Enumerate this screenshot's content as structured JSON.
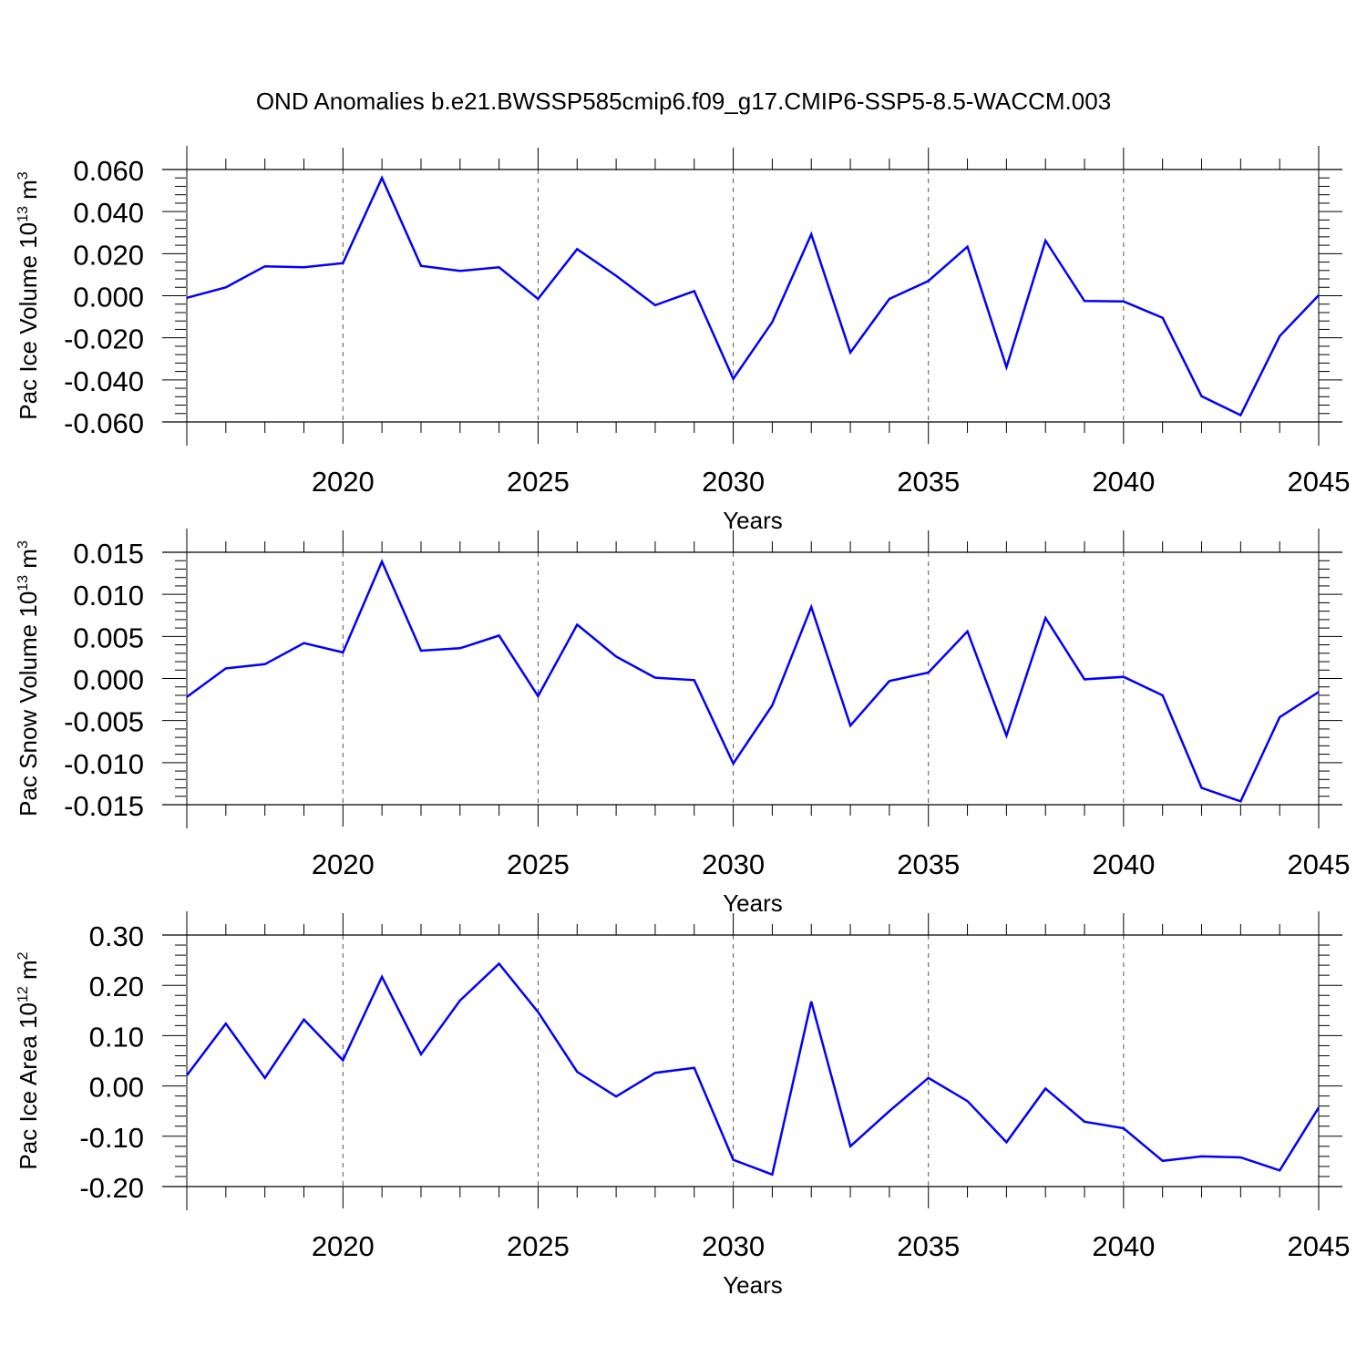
{
  "figure": {
    "title": "OND Anomalies b.e21.BWSSP585cmip6.f09_g17.CMIP6-SSP5-8.5-WACCM.003",
    "line_color": "#0000ff"
  },
  "chart_data": [
    {
      "type": "line",
      "xlabel": "Years",
      "ylabel_main": "Pac Ice Volume 10",
      "ylabel_sup1": "13",
      "ylabel_unit": " m",
      "ylabel_sup2": "3",
      "xlim": [
        2016,
        2045
      ],
      "ylim": [
        -0.06,
        0.06
      ],
      "x_ticks": [
        2020,
        2025,
        2030,
        2035,
        2040,
        2045
      ],
      "x_tick_labels": [
        "2020",
        "2025",
        "2030",
        "2035",
        "2040",
        "2045"
      ],
      "y_ticks": [
        -0.06,
        -0.04,
        -0.02,
        0.0,
        0.02,
        0.04,
        0.06
      ],
      "y_tick_labels": [
        "-0.060",
        "-0.040",
        "-0.020",
        "0.000",
        "0.020",
        "0.040",
        "0.060"
      ],
      "grid": "dashed vertical at major x ticks",
      "x": [
        2016,
        2017,
        2018,
        2019,
        2020,
        2021,
        2022,
        2023,
        2024,
        2025,
        2026,
        2027,
        2028,
        2029,
        2030,
        2031,
        2032,
        2033,
        2034,
        2035,
        2036,
        2037,
        2038,
        2039,
        2040,
        2041,
        2042,
        2043,
        2044,
        2045
      ],
      "series": [
        {
          "values": [
            -0.001,
            0.004,
            0.014,
            0.0135,
            0.0155,
            0.056,
            0.0142,
            0.0118,
            0.0135,
            -0.0015,
            0.0222,
            0.0095,
            -0.0045,
            0.0022,
            -0.0395,
            -0.0125,
            0.0292,
            -0.027,
            -0.0015,
            0.007,
            0.0233,
            -0.034,
            0.0262,
            -0.0025,
            -0.0027,
            -0.0105,
            -0.0478,
            -0.0568,
            -0.0192,
            0.0002
          ]
        }
      ]
    },
    {
      "type": "line",
      "xlabel": "Years",
      "ylabel_main": "Pac Snow Volume 10",
      "ylabel_sup1": "13",
      "ylabel_unit": " m",
      "ylabel_sup2": "3",
      "xlim": [
        2016,
        2045
      ],
      "ylim": [
        -0.015,
        0.015
      ],
      "x_ticks": [
        2020,
        2025,
        2030,
        2035,
        2040,
        2045
      ],
      "x_tick_labels": [
        "2020",
        "2025",
        "2030",
        "2035",
        "2040",
        "2045"
      ],
      "y_ticks": [
        -0.015,
        -0.01,
        -0.005,
        0.0,
        0.005,
        0.01,
        0.015
      ],
      "y_tick_labels": [
        "-0.015",
        "-0.010",
        "-0.005",
        "0.000",
        "0.005",
        "0.010",
        "0.015"
      ],
      "grid": "dashed vertical at major x ticks",
      "x": [
        2016,
        2017,
        2018,
        2019,
        2020,
        2021,
        2022,
        2023,
        2024,
        2025,
        2026,
        2027,
        2028,
        2029,
        2030,
        2031,
        2032,
        2033,
        2034,
        2035,
        2036,
        2037,
        2038,
        2039,
        2040,
        2041,
        2042,
        2043,
        2044,
        2045
      ],
      "series": [
        {
          "values": [
            -0.0022,
            0.0012,
            0.0017,
            0.0042,
            0.0031,
            0.0139,
            0.0033,
            0.0036,
            0.0051,
            -0.0021,
            0.0064,
            0.0026,
            0.0001,
            -0.0002,
            -0.0101,
            -0.0032,
            0.0085,
            -0.0056,
            -0.0003,
            0.0007,
            0.0056,
            -0.0068,
            0.0072,
            -0.0001,
            0.0002,
            -0.002,
            -0.013,
            -0.0146,
            -0.0046,
            -0.0016
          ]
        }
      ]
    },
    {
      "type": "line",
      "xlabel": "Years",
      "ylabel_main": "Pac Ice Area 10",
      "ylabel_sup1": "12",
      "ylabel_unit": " m",
      "ylabel_sup2": "2",
      "xlim": [
        2016,
        2045
      ],
      "ylim": [
        -0.2,
        0.3
      ],
      "x_ticks": [
        2020,
        2025,
        2030,
        2035,
        2040,
        2045
      ],
      "x_tick_labels": [
        "2020",
        "2025",
        "2030",
        "2035",
        "2040",
        "2045"
      ],
      "y_ticks": [
        -0.2,
        -0.1,
        0.0,
        0.1,
        0.2,
        0.3
      ],
      "y_tick_labels": [
        "-0.20",
        "-0.10",
        "0.00",
        "0.10",
        "0.20",
        "0.30"
      ],
      "grid": "dashed vertical at major x ticks",
      "x": [
        2016,
        2017,
        2018,
        2019,
        2020,
        2021,
        2022,
        2023,
        2024,
        2025,
        2026,
        2027,
        2028,
        2029,
        2030,
        2031,
        2032,
        2033,
        2034,
        2035,
        2036,
        2037,
        2038,
        2039,
        2040,
        2041,
        2042,
        2043,
        2044,
        2045
      ],
      "series": [
        {
          "values": [
            0.021,
            0.124,
            0.016,
            0.132,
            0.051,
            0.217,
            0.063,
            0.17,
            0.243,
            0.147,
            0.028,
            -0.021,
            0.026,
            0.036,
            -0.147,
            -0.176,
            0.168,
            -0.12,
            -0.05,
            0.016,
            -0.03,
            -0.112,
            -0.005,
            -0.071,
            -0.084,
            -0.149,
            -0.14,
            -0.142,
            -0.168,
            -0.043
          ]
        }
      ]
    }
  ]
}
